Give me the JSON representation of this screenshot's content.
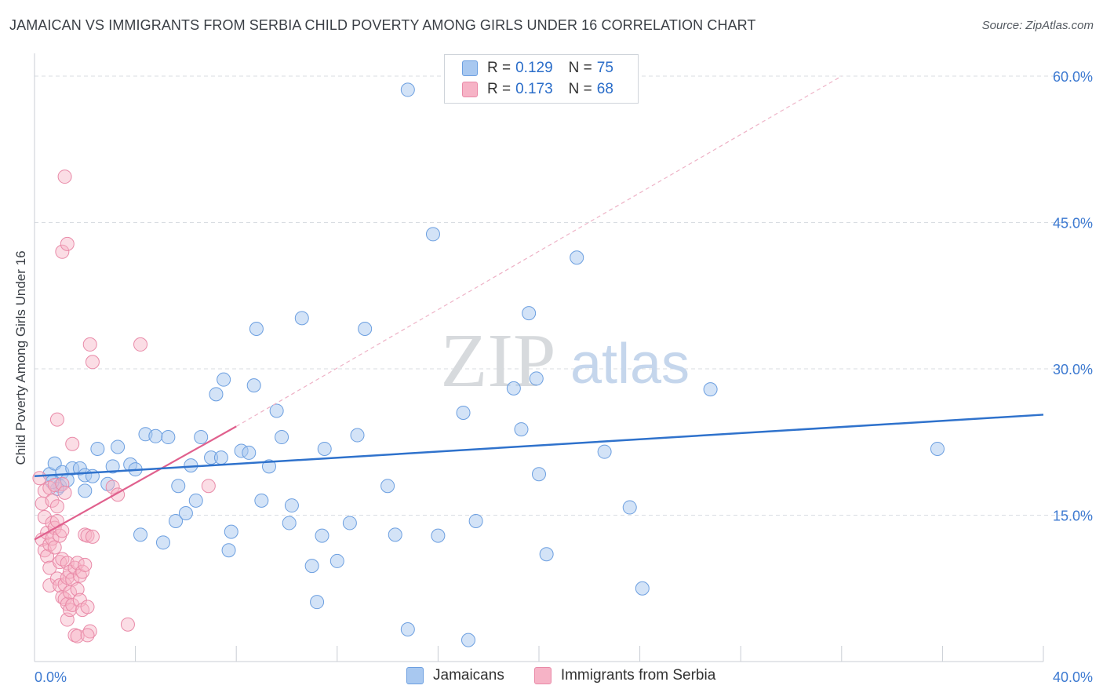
{
  "header": {
    "title": "JAMAICAN VS IMMIGRANTS FROM SERBIA CHILD POVERTY AMONG GIRLS UNDER 16 CORRELATION CHART",
    "source_label": "Source:",
    "source_value": "ZipAtlas.com"
  },
  "watermark": {
    "part1": "ZIP",
    "part2": "atlas"
  },
  "legend": {
    "rows": [
      {
        "r_label": "R =",
        "r_value": "0.129",
        "n_label": "N =",
        "n_value": "75",
        "color": "#a8c8f0"
      },
      {
        "r_label": "R =",
        "r_value": "0.173",
        "n_label": "N =",
        "n_value": "68",
        "color": "#f6b3c6"
      }
    ]
  },
  "colors": {
    "blue_fill": "#a8c8f0",
    "blue_stroke": "#6c9fe0",
    "blue_line": "#2f72cc",
    "pink_fill": "#f6b3c6",
    "pink_stroke": "#e98aa8",
    "pink_line": "#e0608d",
    "grid": "#d9dde2",
    "axis_text": "#3d7ad1"
  },
  "chart_data": {
    "type": "scatter",
    "title": "JAMAICAN VS IMMIGRANTS FROM SERBIA CHILD POVERTY AMONG GIRLS UNDER 16 CORRELATION CHART",
    "xlabel": "",
    "ylabel": "Child Poverty Among Girls Under 16",
    "xlim": [
      0,
      40
    ],
    "ylim": [
      0,
      60
    ],
    "x_tick_labels": [
      "0.0%",
      "40.0%"
    ],
    "y_ticks": [
      15,
      30,
      45,
      60
    ],
    "y_tick_labels": [
      "15.0%",
      "30.0%",
      "45.0%",
      "60.0%"
    ],
    "grid": true,
    "series": [
      {
        "name": "Jamaicans",
        "r": 0.129,
        "n": 75,
        "trend": {
          "x0": 0,
          "y0": 19.0,
          "x1": 40,
          "y1": 25.3
        },
        "points": [
          [
            0.6,
            19.2
          ],
          [
            0.8,
            20.3
          ],
          [
            1.0,
            18.0
          ],
          [
            1.1,
            19.4
          ],
          [
            0.9,
            17.7
          ],
          [
            0.7,
            18.4
          ],
          [
            1.3,
            18.6
          ],
          [
            1.5,
            19.8
          ],
          [
            1.8,
            19.8
          ],
          [
            2.0,
            19.1
          ],
          [
            2.0,
            17.5
          ],
          [
            2.3,
            19.0
          ],
          [
            2.5,
            21.8
          ],
          [
            2.9,
            18.2
          ],
          [
            3.1,
            20.0
          ],
          [
            3.3,
            22.0
          ],
          [
            3.8,
            20.2
          ],
          [
            4.0,
            19.7
          ],
          [
            4.4,
            23.3
          ],
          [
            4.8,
            23.1
          ],
          [
            4.2,
            13.0
          ],
          [
            5.1,
            12.2
          ],
          [
            5.3,
            23.0
          ],
          [
            5.6,
            14.4
          ],
          [
            5.7,
            18.0
          ],
          [
            6.0,
            15.2
          ],
          [
            6.2,
            20.1
          ],
          [
            6.4,
            16.5
          ],
          [
            6.6,
            23.0
          ],
          [
            7.0,
            20.9
          ],
          [
            7.2,
            27.4
          ],
          [
            7.4,
            20.9
          ],
          [
            7.5,
            28.9
          ],
          [
            7.7,
            11.4
          ],
          [
            7.8,
            13.3
          ],
          [
            8.2,
            21.6
          ],
          [
            8.5,
            21.4
          ],
          [
            8.7,
            28.3
          ],
          [
            8.8,
            34.1
          ],
          [
            9.0,
            16.5
          ],
          [
            9.3,
            20.0
          ],
          [
            9.6,
            25.7
          ],
          [
            9.8,
            23.0
          ],
          [
            10.1,
            14.2
          ],
          [
            10.2,
            16.0
          ],
          [
            10.6,
            35.2
          ],
          [
            11.0,
            9.8
          ],
          [
            11.2,
            6.1
          ],
          [
            11.4,
            12.9
          ],
          [
            11.5,
            21.8
          ],
          [
            12.0,
            10.3
          ],
          [
            12.5,
            14.2
          ],
          [
            12.8,
            23.2
          ],
          [
            13.1,
            34.1
          ],
          [
            14.0,
            18.0
          ],
          [
            14.3,
            13.0
          ],
          [
            14.8,
            3.3
          ],
          [
            14.8,
            58.6
          ],
          [
            15.8,
            43.8
          ],
          [
            16.0,
            12.9
          ],
          [
            17.0,
            25.5
          ],
          [
            17.2,
            2.2
          ],
          [
            17.5,
            14.4
          ],
          [
            19.0,
            28.0
          ],
          [
            19.3,
            23.8
          ],
          [
            19.6,
            35.7
          ],
          [
            19.9,
            29.0
          ],
          [
            20.0,
            19.2
          ],
          [
            20.3,
            11.0
          ],
          [
            21.5,
            41.4
          ],
          [
            22.6,
            21.5
          ],
          [
            23.6,
            15.8
          ],
          [
            24.1,
            7.5
          ],
          [
            26.8,
            27.9
          ],
          [
            35.8,
            21.8
          ]
        ]
      },
      {
        "name": "Immigrants from Serbia",
        "r": 0.173,
        "n": 68,
        "trend": {
          "x0": 0,
          "y0": 12.5,
          "x1": 8,
          "y1": 24.1
        },
        "trend_ext": {
          "x0": 8,
          "y0": 24.1,
          "x1": 32,
          "y1": 60
        },
        "points": [
          [
            0.2,
            18.8
          ],
          [
            0.3,
            16.2
          ],
          [
            0.3,
            12.5
          ],
          [
            0.4,
            17.5
          ],
          [
            0.4,
            14.8
          ],
          [
            0.4,
            11.4
          ],
          [
            0.5,
            13.2
          ],
          [
            0.5,
            10.8
          ],
          [
            0.6,
            12.0
          ],
          [
            0.6,
            17.8
          ],
          [
            0.6,
            9.6
          ],
          [
            0.6,
            7.8
          ],
          [
            0.7,
            14.2
          ],
          [
            0.7,
            12.6
          ],
          [
            0.7,
            16.5
          ],
          [
            0.8,
            13.7
          ],
          [
            0.8,
            11.7
          ],
          [
            0.8,
            18.1
          ],
          [
            0.9,
            15.9
          ],
          [
            0.9,
            14.4
          ],
          [
            0.9,
            8.5
          ],
          [
            0.9,
            24.8
          ],
          [
            1.0,
            10.2
          ],
          [
            1.0,
            7.8
          ],
          [
            1.0,
            12.9
          ],
          [
            1.1,
            18.2
          ],
          [
            1.1,
            13.4
          ],
          [
            1.1,
            10.5
          ],
          [
            1.1,
            6.6
          ],
          [
            1.2,
            7.9
          ],
          [
            1.2,
            6.4
          ],
          [
            1.2,
            17.3
          ],
          [
            1.3,
            10.1
          ],
          [
            1.3,
            8.6
          ],
          [
            1.3,
            5.9
          ],
          [
            1.3,
            4.3
          ],
          [
            1.4,
            9.2
          ],
          [
            1.4,
            7.1
          ],
          [
            1.4,
            5.3
          ],
          [
            1.5,
            22.3
          ],
          [
            1.5,
            8.4
          ],
          [
            1.5,
            5.8
          ],
          [
            1.6,
            9.6
          ],
          [
            1.6,
            2.7
          ],
          [
            1.7,
            10.1
          ],
          [
            1.7,
            7.4
          ],
          [
            1.7,
            2.6
          ],
          [
            1.8,
            8.8
          ],
          [
            1.8,
            6.3
          ],
          [
            1.9,
            9.2
          ],
          [
            1.9,
            5.3
          ],
          [
            2.0,
            13.0
          ],
          [
            2.1,
            5.6
          ],
          [
            2.1,
            12.9
          ],
          [
            2.2,
            3.1
          ],
          [
            2.3,
            12.8
          ],
          [
            1.1,
            42.0
          ],
          [
            1.3,
            42.8
          ],
          [
            1.2,
            49.7
          ],
          [
            2.0,
            9.9
          ],
          [
            2.1,
            2.7
          ],
          [
            2.2,
            32.5
          ],
          [
            2.3,
            30.7
          ],
          [
            3.1,
            17.9
          ],
          [
            3.3,
            17.1
          ],
          [
            3.7,
            3.8
          ],
          [
            4.2,
            32.5
          ],
          [
            6.9,
            18.0
          ]
        ]
      }
    ]
  },
  "bottom_legend": {
    "items": [
      {
        "label": "Jamaicans"
      },
      {
        "label": "Immigrants from Serbia"
      }
    ]
  }
}
